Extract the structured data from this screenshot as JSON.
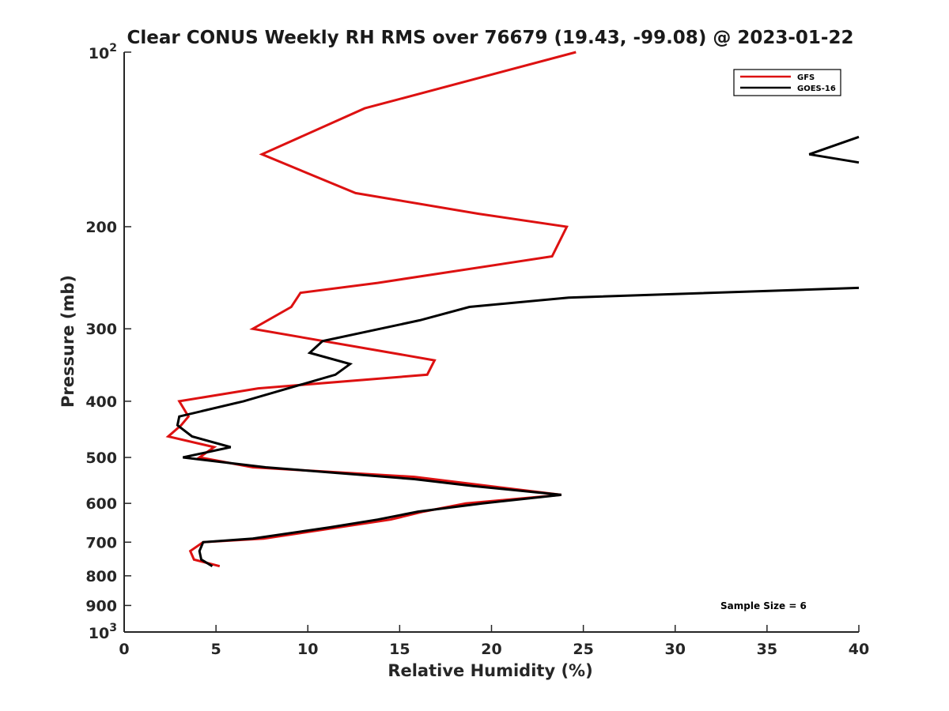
{
  "chart_data": {
    "type": "line",
    "title": "Clear CONUS Weekly RH RMS over 76679 (19.43, -99.08) @ 2023-01-22",
    "xlabel": "Relative Humidity (%)",
    "ylabel": "Pressure (mb)",
    "xlim": [
      0,
      40
    ],
    "ylim": [
      100,
      1000
    ],
    "yscale": "log",
    "y_reversed": true,
    "grid": false,
    "legend_position": "top-right",
    "x_ticks": [
      "0",
      "5",
      "10",
      "15",
      "20",
      "25",
      "30",
      "35",
      "40"
    ],
    "y_ticks": [
      {
        "value": 100,
        "base": "10",
        "exp": "2"
      },
      {
        "value": 200,
        "label": "200"
      },
      {
        "value": 300,
        "label": "300"
      },
      {
        "value": 400,
        "label": "400"
      },
      {
        "value": 500,
        "label": "500"
      },
      {
        "value": 600,
        "label": "600"
      },
      {
        "value": 700,
        "label": "700"
      },
      {
        "value": 800,
        "label": "800"
      },
      {
        "value": 900,
        "label": "900"
      },
      {
        "value": 1000,
        "base": "10",
        "exp": "3"
      }
    ],
    "series": [
      {
        "name": "GFS",
        "color": "#dd1111",
        "points": [
          [
            24.6,
            100
          ],
          [
            13.1,
            125
          ],
          [
            7.5,
            150
          ],
          [
            12.6,
            175
          ],
          [
            19.3,
            190
          ],
          [
            24.1,
            200
          ],
          [
            23.3,
            225
          ],
          [
            13.8,
            250
          ],
          [
            9.6,
            260
          ],
          [
            9.1,
            275
          ],
          [
            7.0,
            300
          ],
          [
            16.9,
            340
          ],
          [
            16.5,
            360
          ],
          [
            7.3,
            380
          ],
          [
            3.0,
            400
          ],
          [
            3.5,
            425
          ],
          [
            3.1,
            440
          ],
          [
            2.4,
            460
          ],
          [
            4.9,
            480
          ],
          [
            4.1,
            500
          ],
          [
            7.0,
            520
          ],
          [
            15.8,
            540
          ],
          [
            23.8,
            580
          ],
          [
            18.6,
            600
          ],
          [
            16.3,
            620
          ],
          [
            14.5,
            640
          ],
          [
            7.6,
            690
          ],
          [
            4.3,
            700
          ],
          [
            3.6,
            725
          ],
          [
            3.8,
            750
          ],
          [
            5.2,
            770
          ]
        ]
      },
      {
        "name": "GOES-16",
        "color": "#000000",
        "points": [
          [
            40.0,
            140
          ],
          [
            37.3,
            150
          ],
          [
            40.0,
            155
          ],
          [
            null,
            null
          ],
          [
            40.0,
            255
          ],
          [
            24.2,
            265
          ],
          [
            18.8,
            275
          ],
          [
            16.1,
            290
          ],
          [
            10.8,
            315
          ],
          [
            10.1,
            330
          ],
          [
            12.3,
            345
          ],
          [
            11.5,
            360
          ],
          [
            6.5,
            400
          ],
          [
            3.0,
            425
          ],
          [
            2.9,
            440
          ],
          [
            3.7,
            460
          ],
          [
            5.8,
            480
          ],
          [
            3.2,
            500
          ],
          [
            7.7,
            520
          ],
          [
            15.8,
            545
          ],
          [
            19.0,
            560
          ],
          [
            23.8,
            580
          ],
          [
            19.5,
            600
          ],
          [
            16.0,
            620
          ],
          [
            13.8,
            640
          ],
          [
            11.2,
            660
          ],
          [
            7.0,
            690
          ],
          [
            4.3,
            700
          ],
          [
            4.1,
            725
          ],
          [
            4.2,
            750
          ],
          [
            4.8,
            770
          ]
        ]
      }
    ],
    "legend": [
      "GFS",
      "GOES-16"
    ],
    "annotation": "Sample Size = 6"
  }
}
